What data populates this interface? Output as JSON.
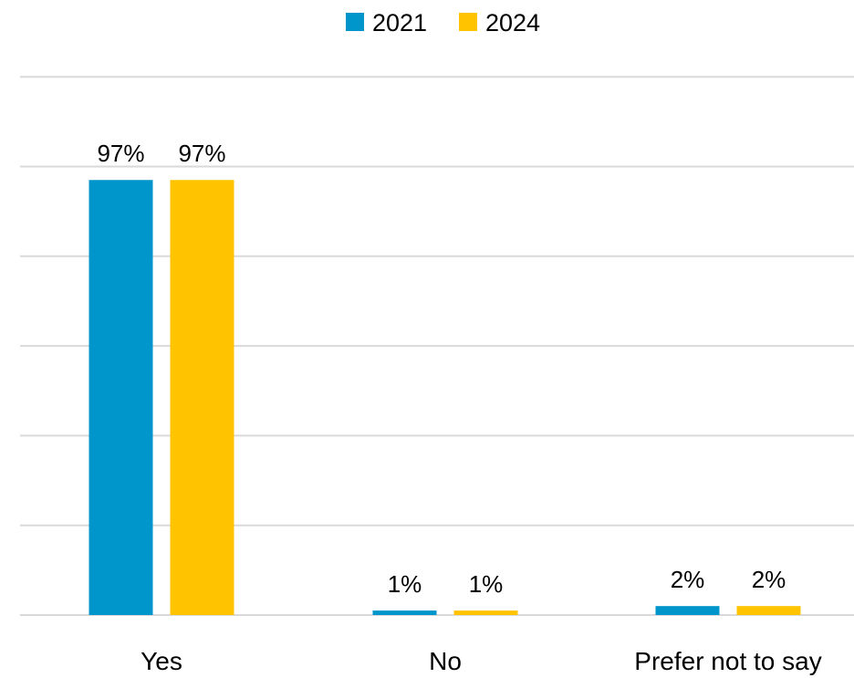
{
  "chart_data": {
    "type": "bar",
    "categories": [
      "Yes",
      "No",
      "Prefer not to say"
    ],
    "series": [
      {
        "name": "2021",
        "values": [
          97,
          1,
          2
        ],
        "labels": [
          "97%",
          "1%",
          "2%"
        ],
        "color": "#0096cc"
      },
      {
        "name": "2024",
        "values": [
          97,
          1,
          2
        ],
        "labels": [
          "97%",
          "1%",
          "2%"
        ],
        "color": "#ffc300"
      }
    ],
    "title": "",
    "xlabel": "",
    "ylabel": "",
    "ylim": [
      0,
      120
    ],
    "grid": true,
    "legend_position": "top-center"
  }
}
